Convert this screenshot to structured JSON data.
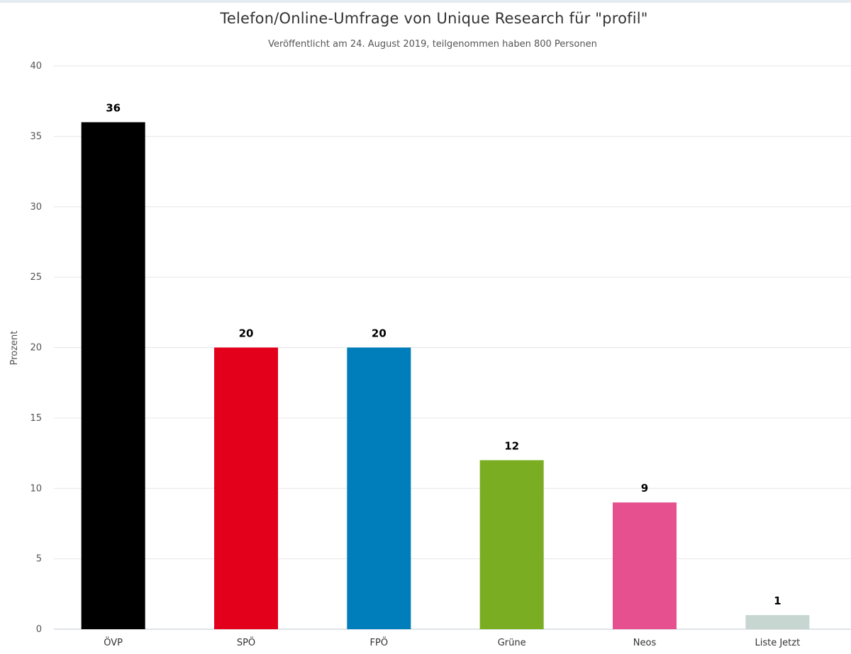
{
  "chart_data": {
    "type": "bar",
    "title": "Telefon/Online-Umfrage von Unique Research für \"profil\"",
    "subtitle": "Veröffentlicht am 24. August 2019, teilgenommen haben 800 Personen",
    "ylabel": "Prozent",
    "xlabel": "",
    "ylim": [
      0,
      40
    ],
    "yticks": [
      "0",
      "5",
      "10",
      "15",
      "20",
      "25",
      "30",
      "35",
      "40"
    ],
    "grid": true,
    "legend": "none",
    "categories": [
      "ÖVP",
      "SPÖ",
      "FPÖ",
      "Grüne",
      "Neos",
      "Liste Jetzt"
    ],
    "values": [
      36,
      20,
      20,
      12,
      9,
      1
    ],
    "data_labels": [
      "36",
      "20",
      "20",
      "12",
      "9",
      "1"
    ],
    "colors": [
      "#000000",
      "#e2001a",
      "#007dbb",
      "#7aad22",
      "#e6508e",
      "#c8d6d2"
    ]
  }
}
